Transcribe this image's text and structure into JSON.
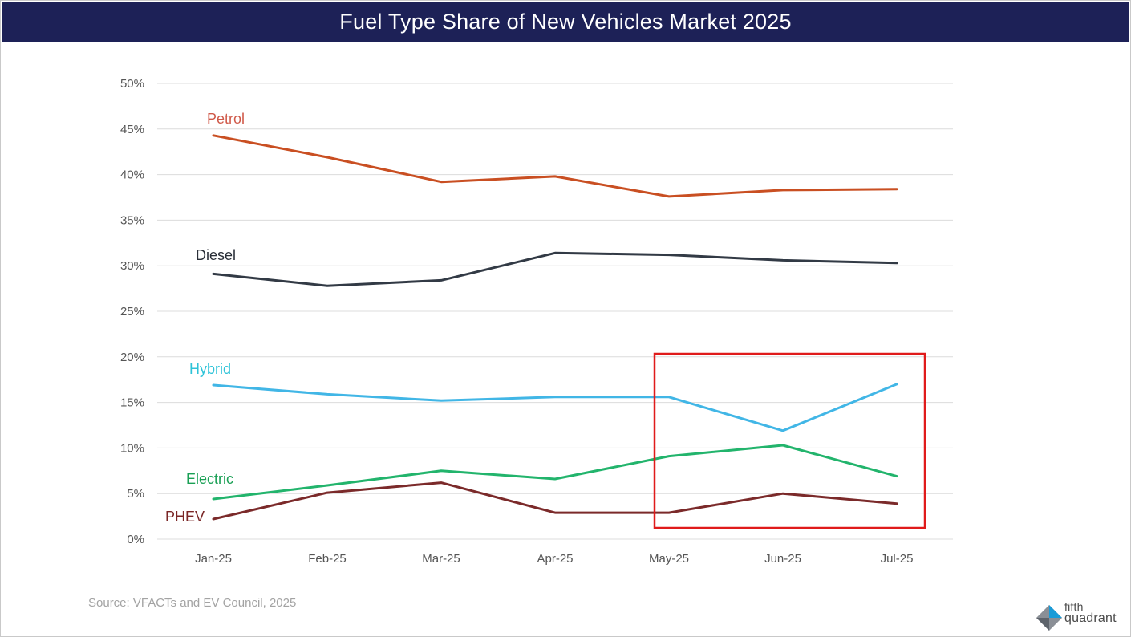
{
  "header": {
    "title": "Fuel Type Share of New Vehicles Market 2025"
  },
  "footer": {
    "source": "Source: VFACTs and EV Council, 2025"
  },
  "logo": {
    "line1": "fifth",
    "line2": "quadrant",
    "icon": "fifth-quadrant-logo-icon"
  },
  "highlight": {
    "from": "May-25",
    "to": "Jul-25",
    "color": "#e01b1b"
  },
  "chart_data": {
    "type": "line",
    "title": "Fuel Type Share of New Vehicles Market 2025",
    "xlabel": "",
    "ylabel": "",
    "categories": [
      "Jan-25",
      "Feb-25",
      "Mar-25",
      "Apr-25",
      "May-25",
      "Jun-25",
      "Jul-25"
    ],
    "ylim": [
      0,
      50
    ],
    "yticks": [
      0,
      5,
      10,
      15,
      20,
      25,
      30,
      35,
      40,
      45,
      50
    ],
    "ytick_labels": [
      "0%",
      "5%",
      "10%",
      "15%",
      "20%",
      "25%",
      "30%",
      "35%",
      "40%",
      "45%",
      "50%"
    ],
    "grid": true,
    "series": [
      {
        "name": "Petrol",
        "color": "#c94f22",
        "label_color": "#d05a4a",
        "values": [
          44.3,
          41.9,
          39.2,
          39.8,
          37.6,
          38.3,
          38.4
        ]
      },
      {
        "name": "Diesel",
        "color": "#323a45",
        "label_color": "#2a2f38",
        "values": [
          29.1,
          27.8,
          28.4,
          31.4,
          31.2,
          30.6,
          30.3
        ]
      },
      {
        "name": "Hybrid",
        "color": "#41b6e6",
        "label_color": "#2ec3d8",
        "values": [
          16.9,
          15.9,
          15.2,
          15.6,
          15.6,
          11.9,
          17.0
        ]
      },
      {
        "name": "Electric",
        "color": "#22b46c",
        "label_color": "#1aa055",
        "values": [
          4.4,
          5.9,
          7.5,
          6.6,
          9.1,
          10.3,
          6.9
        ]
      },
      {
        "name": "PHEV",
        "color": "#7b2a2a",
        "label_color": "#7a2626",
        "values": [
          2.2,
          5.1,
          6.2,
          2.9,
          2.9,
          5.0,
          3.9
        ]
      }
    ]
  }
}
